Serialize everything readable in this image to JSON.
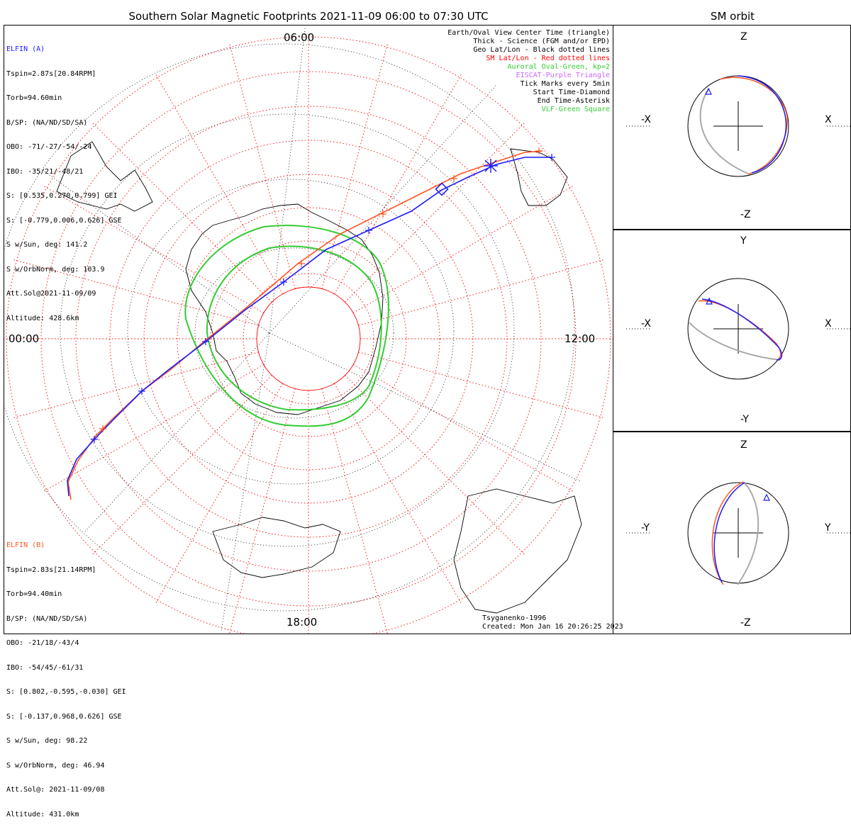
{
  "title": "Southern Solar Magnetic Footprints 2021-11-09 06:00 to 07:30 UTC",
  "sm_orbit_title": "SM orbit",
  "hours": {
    "top": "06:00",
    "left": "00:00",
    "right": "12:00",
    "bottom": "18:00"
  },
  "elfin_a": {
    "name": "ELFIN (A)",
    "color": "#1a1aff",
    "lines": [
      "Tspin=2.87s[20.84RPM]",
      "Torb=94.60min",
      "B/SP: (NA/ND/SD/SA)",
      "OBO: -71/-27/-54/-24",
      "IBO: -35/21/-48/21",
      "S: [0.535,0.270,0.799] GEI",
      "S: [-0.779,0.006,0.626] GSE",
      "S w/Sun, deg: 141.2",
      "S w/OrbNorm, deg: 103.9",
      "Att.Sol@2021-11-09/09",
      "Altitude: 428.6km"
    ]
  },
  "elfin_b": {
    "name": "ELFIN (B)",
    "color": "#ff5522",
    "lines": [
      "Tspin=2.83s[21.14RPM]",
      "Torb=94.40min",
      "B/SP: (NA/ND/SD/SA)",
      "OBO: -21/18/-43/4",
      "IBO: -54/45/-61/31",
      "S: [0.802,-0.595,-0.030] GEI",
      "S: [-0.137,0.968,0.626] GSE",
      "S w/Sun, deg: 98.22",
      "S w/OrbNorm, deg: 46.94",
      "Att.Sol@: 2021-11-09/08",
      "Altitude: 431.0km"
    ]
  },
  "legend": [
    {
      "text": "Earth/Oval View Center Time (triangle)",
      "color": "#000000"
    },
    {
      "text": "Thick - Science (FGM and/or EPD)",
      "color": "#000000"
    },
    {
      "text": "Geo Lat/Lon - Black dotted lines",
      "color": "#000000"
    },
    {
      "text": "SM Lat/Lon - Red dotted lines",
      "color": "#ff0000"
    },
    {
      "text": "Auroral Oval-Green, kp=2",
      "color": "#33cc33"
    },
    {
      "text": "EISCAT-Purple Triangle",
      "color": "#cc66ff"
    },
    {
      "text": "Tick Marks every 5min",
      "color": "#000000"
    },
    {
      "text": "Start Time-Diamond",
      "color": "#000000"
    },
    {
      "text": "End Time-Asterisk",
      "color": "#000000"
    },
    {
      "text": "VLF-Green Square",
      "color": "#33cc33"
    }
  ],
  "credits": {
    "model": "Tsyganenko-1996",
    "created": "Created: Mon Jan 16 20:26:25 2023"
  },
  "sm_panels": [
    {
      "top": "Z",
      "bottom": "-Z",
      "left": "-X",
      "right": "X"
    },
    {
      "top": "Y",
      "bottom": "-Y",
      "left": "-X",
      "right": "X"
    },
    {
      "top": "Z",
      "bottom": "-Z",
      "left": "-Y",
      "right": "Y"
    }
  ],
  "colors": {
    "a": "#1a1aff",
    "b": "#ff5522",
    "sm_grid": "#ff0000",
    "oval": "#33cc33",
    "geo": "#000000",
    "orbit_gray": "#aaaaaa"
  }
}
